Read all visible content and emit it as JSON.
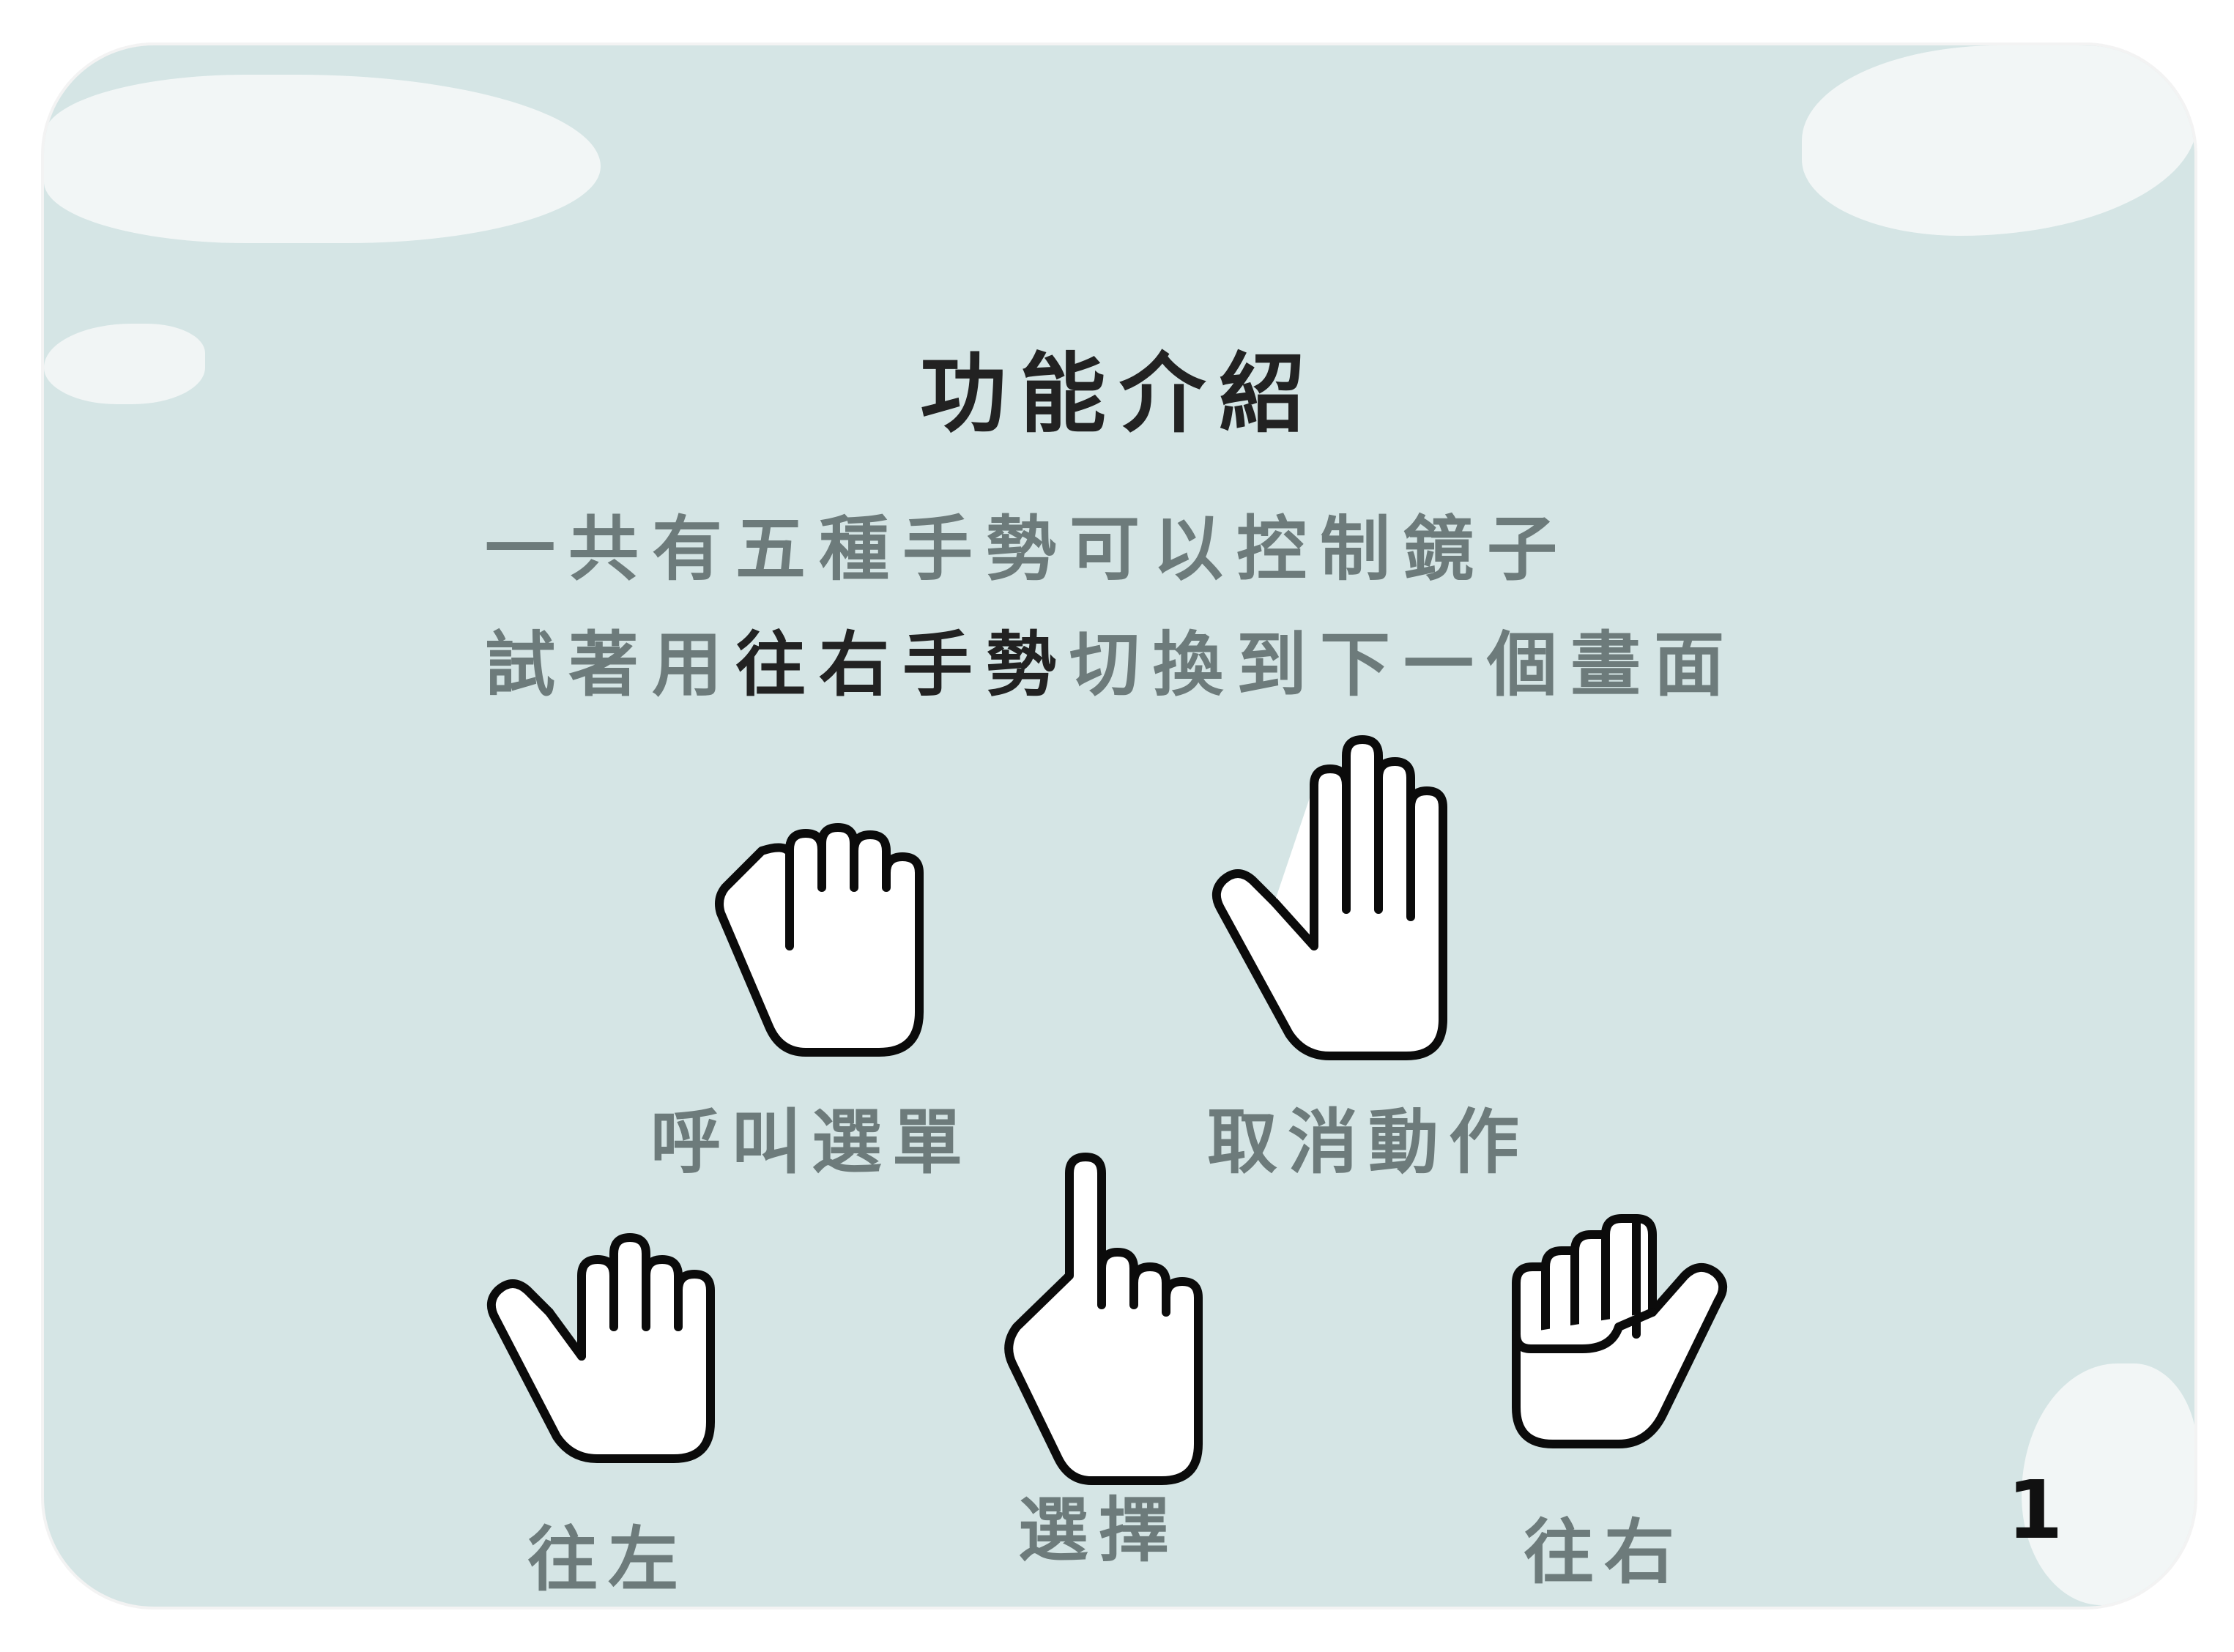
{
  "title": "功能介紹",
  "intro": {
    "line1": "一共有五種手勢可以控制鏡子",
    "line2_prefix": "試著用",
    "line2_highlight": "往右手勢",
    "line2_suffix": "切換到下一個畫面"
  },
  "gestures": [
    {
      "icon": "fist-icon",
      "label": "呼叫選單"
    },
    {
      "icon": "open-palm-icon",
      "label": "取消動作"
    },
    {
      "icon": "hand-left-icon",
      "label": "往左"
    },
    {
      "icon": "pointing-finger-icon",
      "label": "選擇"
    },
    {
      "icon": "hand-right-icon",
      "label": "往右"
    }
  ],
  "page_number": "1",
  "colors": {
    "background": "#d5e5e5",
    "text_gray": "#6d7b7b",
    "text_dark": "#222222"
  }
}
